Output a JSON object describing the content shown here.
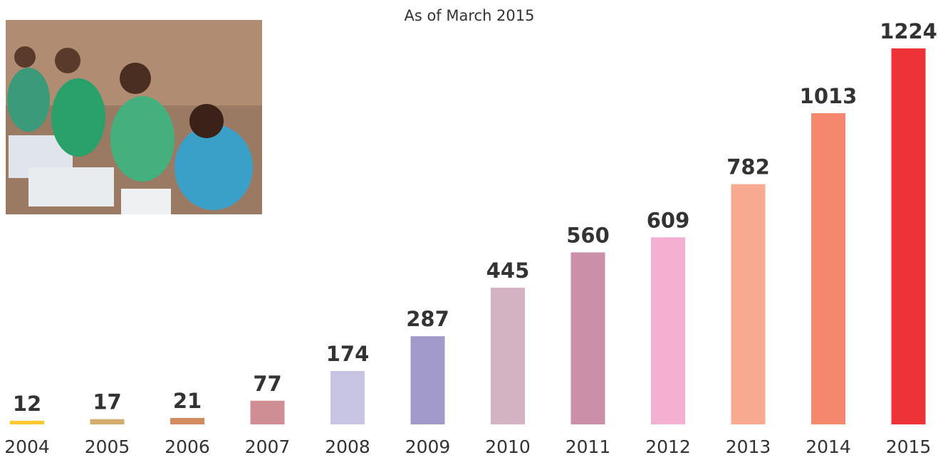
{
  "chart_data": {
    "type": "bar",
    "subtitle": "As of March 2015",
    "categories": [
      "2004",
      "2005",
      "2006",
      "2007",
      "2008",
      "2009",
      "2010",
      "2011",
      "2012",
      "2013",
      "2014",
      "2015"
    ],
    "values": [
      12,
      17,
      21,
      77,
      174,
      287,
      445,
      560,
      609,
      782,
      1013,
      1224
    ],
    "colors": [
      "#fdc82f",
      "#d4ac6e",
      "#d28a5e",
      "#ce8e94",
      "#c7c4e4",
      "#a29bca",
      "#d3b2c3",
      "#cc8faa",
      "#f3b0d0",
      "#f7aa90",
      "#f5876c",
      "#ee3338"
    ]
  }
}
